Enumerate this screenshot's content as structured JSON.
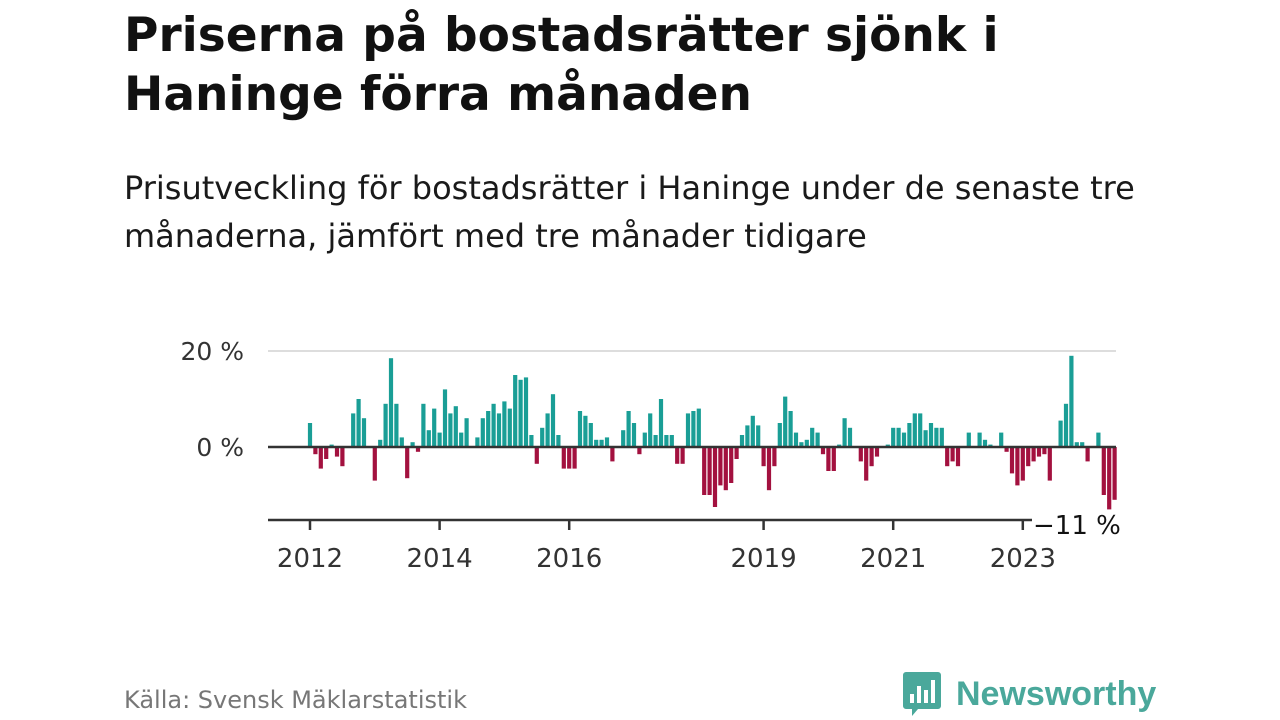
{
  "title": "Priserna på bostadsrätter sjönk i Haninge förra månaden",
  "subtitle": "Prisutveckling för bostadsrätter i Haninge under de senaste tre månaderna, jämfört med tre månader tidigare",
  "source": "Källa: Svensk Mäklarstatistik",
  "brand": {
    "name": "Newsworthy",
    "icon": "bar-chart-speech-icon"
  },
  "colors": {
    "positive": "#1a9e96",
    "negative": "#a3113f",
    "grid": "#dddddd",
    "zero_line": "#333333",
    "brand": "#4aa89b"
  },
  "chart_data": {
    "type": "bar",
    "title": "Priserna på bostadsrätter sjönk i Haninge förra månaden",
    "xlabel": "",
    "ylabel": "",
    "unit": "%",
    "ylim": [
      -15,
      20
    ],
    "yticks": [
      {
        "value": 0,
        "label": "0 %"
      },
      {
        "value": 20,
        "label": "20 %"
      }
    ],
    "start": {
      "year": 2012,
      "month": 1
    },
    "xticks": [
      {
        "year": 2012,
        "label": "2012"
      },
      {
        "year": 2014,
        "label": "2014"
      },
      {
        "year": 2016,
        "label": "2016"
      },
      {
        "year": 2019,
        "label": "2019"
      },
      {
        "year": 2021,
        "label": "2021"
      },
      {
        "year": 2023,
        "label": "2023"
      }
    ],
    "end_label": "−11 %",
    "last_value": -11,
    "values": [
      5,
      -1.5,
      -4.5,
      -2.5,
      0.5,
      -2,
      -4,
      0,
      7,
      10,
      6,
      0,
      -7,
      1.5,
      9,
      18.5,
      9,
      2,
      -6.5,
      1,
      -1,
      9,
      3.5,
      8,
      3,
      12,
      7,
      8.5,
      3,
      6,
      0,
      2,
      6,
      7.5,
      9,
      7,
      9.5,
      8,
      15,
      14,
      14.5,
      2.5,
      -3.5,
      4,
      7,
      11,
      2.5,
      -4.5,
      -4.5,
      -4.5,
      7.5,
      6.5,
      5,
      1.5,
      1.5,
      2,
      -3,
      0,
      3.5,
      7.5,
      5,
      -1.5,
      3,
      7,
      2.5,
      10,
      2.5,
      2.5,
      -3.5,
      -3.5,
      7,
      7.5,
      8,
      -10,
      -10,
      -12.5,
      -8,
      -9,
      -7.5,
      -2.5,
      2.5,
      4.5,
      6.5,
      4.5,
      -4,
      -9,
      -4,
      5,
      10.5,
      7.5,
      3,
      1,
      1.5,
      4,
      3,
      -1.5,
      -5,
      -5,
      0.5,
      6,
      4,
      0,
      -3,
      -7,
      -4,
      -2,
      0,
      0.5,
      4,
      4,
      3,
      5,
      7,
      7,
      3.5,
      5,
      4,
      4,
      -4,
      -3,
      -4,
      0,
      3,
      0,
      3,
      1.5,
      0.5,
      0,
      3,
      -1,
      -5.5,
      -8,
      -7,
      -4,
      -3,
      -2,
      -1.5,
      -7,
      0,
      5.5,
      9,
      19,
      1,
      1,
      -3,
      0,
      3,
      -10,
      -13,
      -11
    ]
  }
}
